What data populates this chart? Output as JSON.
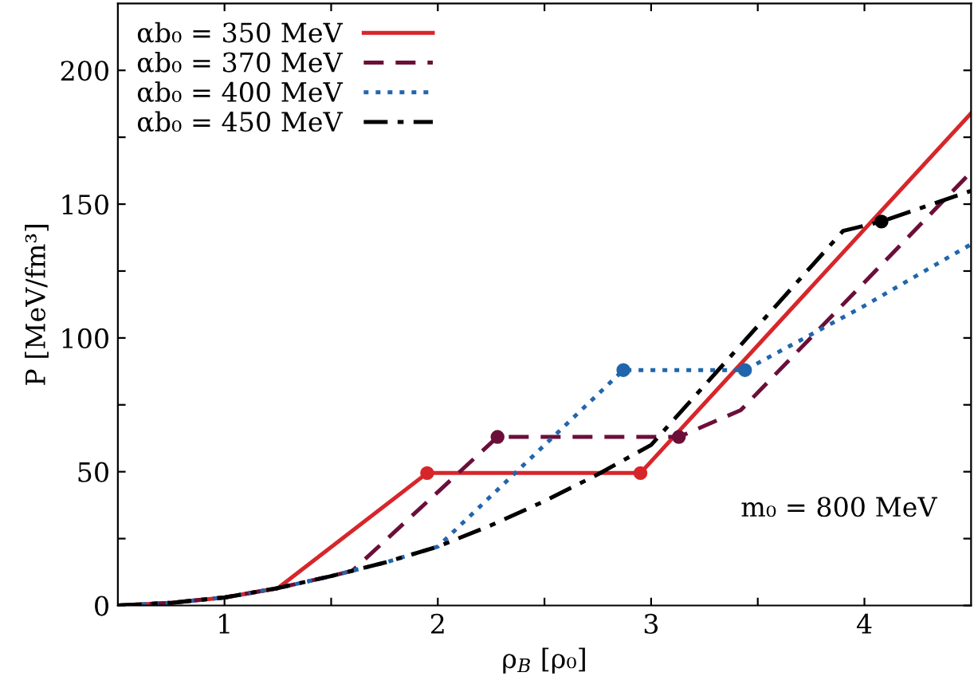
{
  "chart_data": {
    "type": "line",
    "xlabel": "ρ$_{B}$ [ρ₀]",
    "ylabel": "P [MeV/fm³]",
    "xlim": [
      0.5,
      4.5
    ],
    "ylim": [
      0,
      225
    ],
    "xticks": [
      1,
      2,
      3,
      4,
      {
        "value": 1.5,
        "label": null
      },
      {
        "value": 2.5,
        "label": null
      },
      {
        "value": 3.5,
        "label": null
      }
    ],
    "yticks": [
      0,
      50,
      100,
      150,
      200,
      {
        "value": 25,
        "label": null
      },
      {
        "value": 75,
        "label": null
      },
      {
        "value": 125,
        "label": null
      },
      {
        "value": 175,
        "label": null
      }
    ],
    "legend": "top left",
    "grid": false,
    "annotations": [
      {
        "text": "m₀ = 800 MeV"
      }
    ],
    "series": [
      {
        "name": "αb₀ = 350 MeV",
        "color": "#d7262b",
        "line_style": "solid",
        "x": [
          0.5,
          0.75,
          1,
          1.25,
          1.95,
          2.95,
          4.5
        ],
        "values": [
          0,
          1,
          3,
          6.5,
          49.5,
          49.5,
          184
        ]
      },
      {
        "name": "αb₀ = 370 MeV",
        "color": "#6b0f3a",
        "line_style": "dashed",
        "x": [
          0.5,
          0.75,
          1,
          1.25,
          1.5,
          1.6,
          2.28,
          3.13,
          3.42,
          4.5
        ],
        "values": [
          0,
          1,
          3,
          6.5,
          11,
          13,
          63,
          63,
          73,
          162
        ]
      },
      {
        "name": "αb₀ = 400 MeV",
        "color": "#2166ac",
        "line_style": "dotted",
        "x": [
          0.5,
          0.75,
          1,
          1.25,
          1.5,
          1.75,
          2,
          2.87,
          3.44,
          4,
          4.5
        ],
        "values": [
          0,
          1,
          3,
          6.5,
          11,
          16,
          22,
          88,
          88,
          112,
          135
        ]
      },
      {
        "name": "αb₀ = 450 MeV",
        "color": "#000000",
        "line_style": "dashdot",
        "x": [
          0.5,
          0.75,
          1,
          1.25,
          1.5,
          1.75,
          2,
          2.25,
          2.5,
          2.75,
          3,
          3.9,
          4.08,
          4.5
        ],
        "values": [
          0,
          1,
          3,
          6.5,
          11,
          16,
          22,
          30,
          39,
          49,
          60,
          140,
          143.5,
          155
        ]
      },
      {
        "type": "scatter",
        "color": "#d7262b",
        "x": [
          1.95,
          2.95
        ],
        "values": [
          49.5,
          49.5
        ]
      },
      {
        "type": "scatter",
        "color": "#6b0f3a",
        "x": [
          2.28,
          3.13
        ],
        "values": [
          63,
          63
        ]
      },
      {
        "type": "scatter",
        "color": "#2166ac",
        "x": [
          2.87,
          3.44
        ],
        "values": [
          88,
          88
        ]
      },
      {
        "type": "scatter",
        "color": "#000000",
        "x": [
          4.08
        ],
        "values": [
          143.5
        ]
      }
    ]
  }
}
